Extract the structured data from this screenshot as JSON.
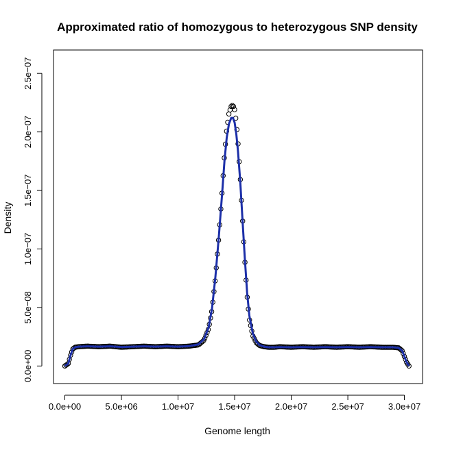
{
  "chart_data": {
    "type": "scatter",
    "title": "Approximated ratio of homozygous to heterozygous SNP density",
    "xlabel": "Genome length",
    "ylabel": "Density",
    "xlim": [
      -1000000,
      31600000
    ],
    "ylim": [
      -1.5e-08,
      2.7e-07
    ],
    "x_ticks": [
      0,
      5000000,
      10000000,
      15000000,
      20000000,
      25000000,
      30000000
    ],
    "x_tick_labels": [
      "0.0e+00",
      "5.0e+06",
      "1.0e+07",
      "1.5e+07",
      "2.0e+07",
      "2.5e+07",
      "3.0e+07"
    ],
    "y_ticks": [
      0,
      5e-08,
      1e-07,
      1.5e-07,
      2e-07,
      2.5e-07
    ],
    "y_tick_labels": [
      "0.0e+00",
      "5.0e−08",
      "1.0e−07",
      "1.5e−07",
      "2.0e−07",
      "2.5e−07"
    ],
    "grid": false,
    "legend": "none",
    "series": [
      {
        "mark": "open-circle",
        "color": "#000000",
        "x": [
          0,
          300000,
          500000,
          700000,
          900000,
          1200000,
          2000000,
          3000000,
          4000000,
          5000000,
          6000000,
          7000000,
          8000000,
          9000000,
          10000000,
          11000000,
          11800000,
          12300000,
          12700000,
          13000000,
          13300000,
          13600000,
          13900000,
          14100000,
          14300000,
          14500000,
          14700000,
          14850000,
          15000000,
          15150000,
          15300000,
          15500000,
          15700000,
          15900000,
          16100000,
          16300000,
          16600000,
          16900000,
          17200000,
          17600000,
          18000000,
          18500000,
          19000000,
          20000000,
          21000000,
          22000000,
          23000000,
          24000000,
          25000000,
          26000000,
          27000000,
          28000000,
          29000000,
          29500000,
          29800000,
          30000000,
          30200000,
          30400000
        ],
        "y": [
          0,
          2e-09,
          9e-09,
          1.45e-08,
          1.6e-08,
          1.65e-08,
          1.7e-08,
          1.65e-08,
          1.7e-08,
          1.6e-08,
          1.65e-08,
          1.7e-08,
          1.65e-08,
          1.7e-08,
          1.65e-08,
          1.7e-08,
          1.8e-08,
          2.2e-08,
          3.2e-08,
          4.8e-08,
          7.5e-08,
          1.1e-07,
          1.5e-07,
          1.8e-07,
          2.02e-07,
          2.16e-07,
          2.22e-07,
          2.23e-07,
          2.19e-07,
          2.08e-07,
          1.9e-07,
          1.6e-07,
          1.25e-07,
          9e-08,
          6e-08,
          4e-08,
          2.6e-08,
          2e-08,
          1.75e-08,
          1.65e-08,
          1.6e-08,
          1.6e-08,
          1.65e-08,
          1.6e-08,
          1.65e-08,
          1.6e-08,
          1.65e-08,
          1.6e-08,
          1.65e-08,
          1.6e-08,
          1.65e-08,
          1.6e-08,
          1.6e-08,
          1.55e-08,
          1.3e-08,
          8e-09,
          3e-09,
          0
        ]
      },
      {
        "mark": "line",
        "color": "#1c2fa8",
        "x": [
          0,
          300000,
          500000,
          700000,
          900000,
          1200000,
          2000000,
          3000000,
          4000000,
          5000000,
          6000000,
          7000000,
          8000000,
          9000000,
          10000000,
          11000000,
          11800000,
          12300000,
          12700000,
          13000000,
          13300000,
          13600000,
          13900000,
          14100000,
          14300000,
          14500000,
          14700000,
          14850000,
          15000000,
          15150000,
          15300000,
          15500000,
          15700000,
          15900000,
          16100000,
          16300000,
          16600000,
          16900000,
          17200000,
          17600000,
          18000000,
          18500000,
          19000000,
          20000000,
          21000000,
          22000000,
          23000000,
          24000000,
          25000000,
          26000000,
          27000000,
          28000000,
          29000000,
          29500000,
          29800000,
          30000000,
          30200000,
          30400000
        ],
        "y": [
          0,
          2e-09,
          9e-09,
          1.45e-08,
          1.6e-08,
          1.65e-08,
          1.68e-08,
          1.65e-08,
          1.68e-08,
          1.62e-08,
          1.65e-08,
          1.68e-08,
          1.65e-08,
          1.68e-08,
          1.65e-08,
          1.7e-08,
          1.85e-08,
          2.3e-08,
          3.3e-08,
          4.9e-08,
          7.6e-08,
          1.1e-07,
          1.48e-07,
          1.75e-07,
          1.95e-07,
          2.07e-07,
          2.12e-07,
          2.12e-07,
          2.08e-07,
          1.98e-07,
          1.83e-07,
          1.57e-07,
          1.24e-07,
          9.2e-08,
          6.3e-08,
          4.3e-08,
          2.8e-08,
          2.1e-08,
          1.8e-08,
          1.65e-08,
          1.6e-08,
          1.6e-08,
          1.62e-08,
          1.6e-08,
          1.62e-08,
          1.6e-08,
          1.62e-08,
          1.6e-08,
          1.62e-08,
          1.6e-08,
          1.62e-08,
          1.6e-08,
          1.6e-08,
          1.55e-08,
          1.3e-08,
          8e-09,
          3e-09,
          0
        ]
      }
    ]
  }
}
